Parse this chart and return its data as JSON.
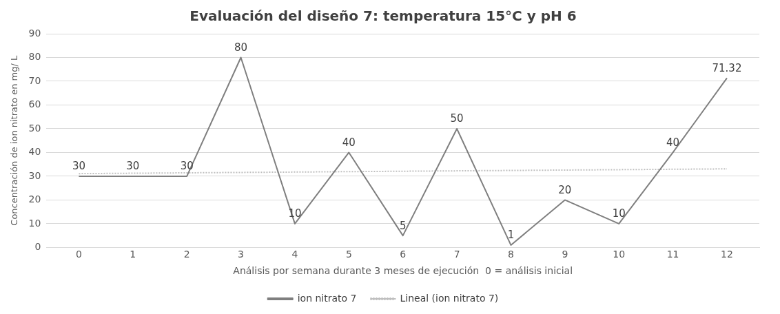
{
  "chart_data": {
    "type": "line",
    "title": "Evaluación del diseño 7: temperatura 15°C y pH 6",
    "xlabel": "Análisis por semana durante 3 meses de ejecución  0 = análisis inicial",
    "ylabel": "Concentración de ion nitrato en mg/ L",
    "x": [
      0,
      1,
      2,
      3,
      4,
      5,
      6,
      7,
      8,
      9,
      10,
      11,
      12
    ],
    "series": [
      {
        "name": "ion nitrato 7",
        "color": "#7f7f7f",
        "line_style": "solid",
        "values": [
          30,
          30,
          30,
          80,
          10,
          40,
          5,
          50,
          1,
          20,
          10,
          40,
          71.32
        ],
        "value_labels": [
          "30",
          "30",
          "30",
          "80",
          "10",
          "40",
          "5",
          "50",
          "1",
          "20",
          "10",
          "40",
          "71.32"
        ]
      },
      {
        "name": "Lineal (ion nitrato 7)",
        "type": "line",
        "color": "#bfbfbf",
        "line_style": "dotted",
        "x": [
          0,
          12
        ],
        "values": [
          31.1,
          33.1
        ]
      }
    ],
    "xlim": [
      -0.6,
      12.6
    ],
    "xticks": [
      0,
      1,
      2,
      3,
      4,
      5,
      6,
      7,
      8,
      9,
      10,
      11,
      12
    ],
    "ylim": [
      0,
      90
    ],
    "yticks": [
      0,
      10,
      20,
      30,
      40,
      50,
      60,
      70,
      80,
      90
    ],
    "grid": "y",
    "legend": "bottom",
    "marker": "none"
  }
}
